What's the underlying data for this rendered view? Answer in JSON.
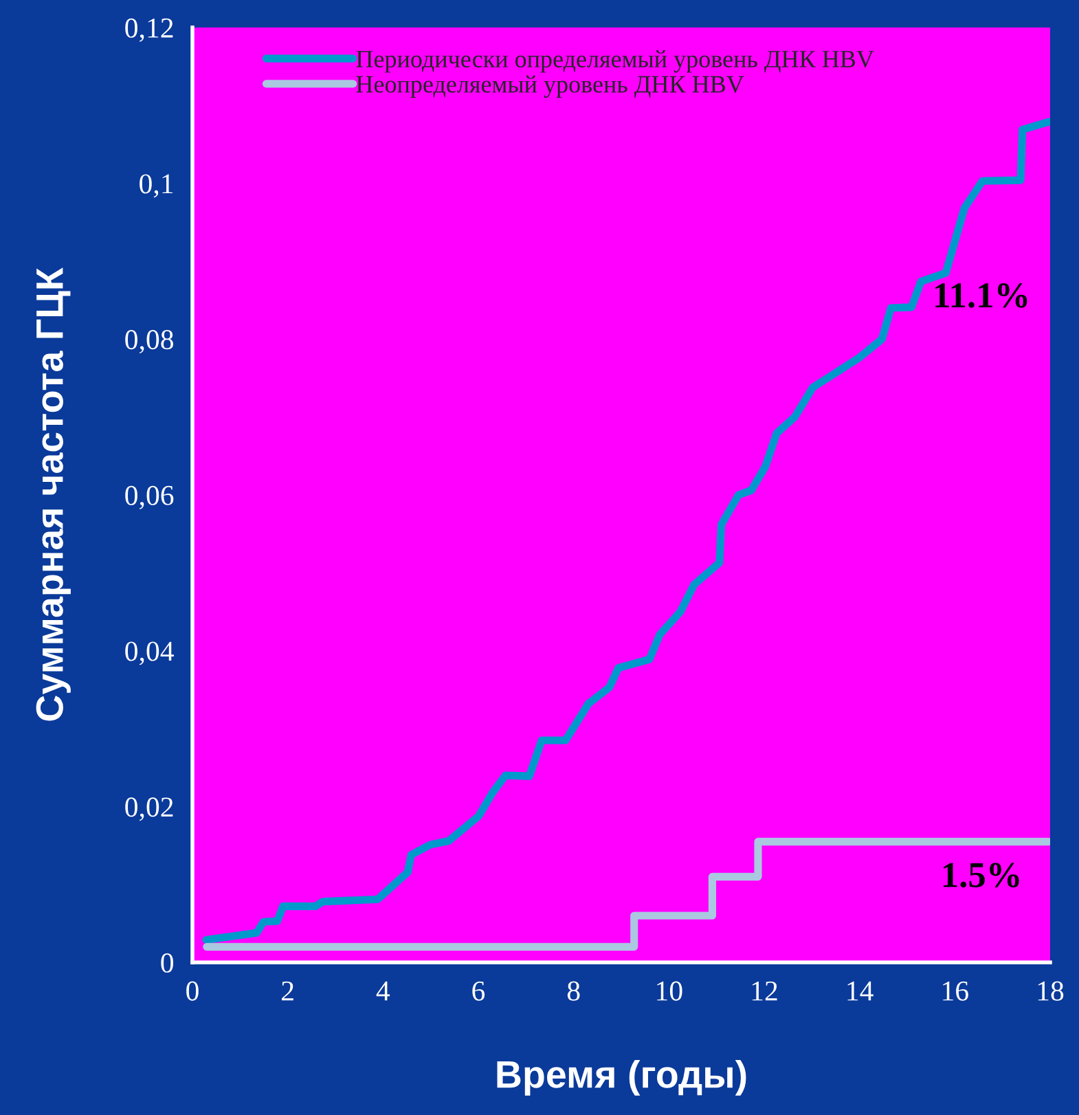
{
  "chart_data": {
    "type": "line",
    "xlabel": "Время (годы)",
    "ylabel": "Суммарная частота ГЦК",
    "series": [
      {
        "name": "Периодически определяемый уровень ДНК HBV",
        "color": "#0099cc",
        "x": [
          0.29,
          1.35,
          1.49,
          1.78,
          1.9,
          2.58,
          2.74,
          3.89,
          4.52,
          4.59,
          4.99,
          5.38,
          6.01,
          6.3,
          6.57,
          7.07,
          7.33,
          7.83,
          8.31,
          8.75,
          8.94,
          9.59,
          9.81,
          10.24,
          10.53,
          11.06,
          11.1,
          11.46,
          11.73,
          12.02,
          12.26,
          12.64,
          13.02,
          13.99,
          14.47,
          14.66,
          15.09,
          15.29,
          15.81,
          16.2,
          16.58,
          17.38,
          17.42,
          17.98
        ],
        "values": [
          0.0029,
          0.0038,
          0.0052,
          0.0053,
          0.0072,
          0.0072,
          0.0078,
          0.0081,
          0.0116,
          0.0138,
          0.0151,
          0.0156,
          0.0188,
          0.0218,
          0.024,
          0.0239,
          0.0285,
          0.0285,
          0.0332,
          0.0353,
          0.0378,
          0.0389,
          0.0421,
          0.045,
          0.0485,
          0.0513,
          0.0562,
          0.06,
          0.0606,
          0.0636,
          0.0679,
          0.07,
          0.0738,
          0.0776,
          0.08,
          0.084,
          0.0841,
          0.0874,
          0.0885,
          0.0968,
          0.1003,
          0.1004,
          0.1069,
          0.1079
        ]
      },
      {
        "name": "Неопределяемый уровень ДНК HBV",
        "type": "step",
        "color": "#aac8e0",
        "x": [
          0.3,
          9.27,
          10.91,
          11.87,
          17.97
        ],
        "values": [
          0.002,
          0.006,
          0.011,
          0.0155,
          0.0155
        ]
      }
    ],
    "xlim": [
      0,
      18
    ],
    "xticks": [
      0,
      2,
      4,
      6,
      8,
      10,
      12,
      14,
      16,
      18
    ],
    "ylim": [
      0,
      0.12
    ],
    "yticks": [
      0,
      {
        "value": 0.02,
        "label": "0,02"
      },
      {
        "value": 0.04,
        "label": "0,04"
      },
      {
        "value": 0.06,
        "label": "0,06"
      },
      {
        "value": 0.08,
        "label": "0,08"
      },
      {
        "value": 0.1,
        "label": "0,1"
      },
      {
        "value": 0.12,
        "label": "0,12"
      }
    ],
    "annotations": [
      "11.1%",
      "1.5%"
    ],
    "legend": "top left",
    "grid": false,
    "marker": "none",
    "line_style": "solid"
  }
}
